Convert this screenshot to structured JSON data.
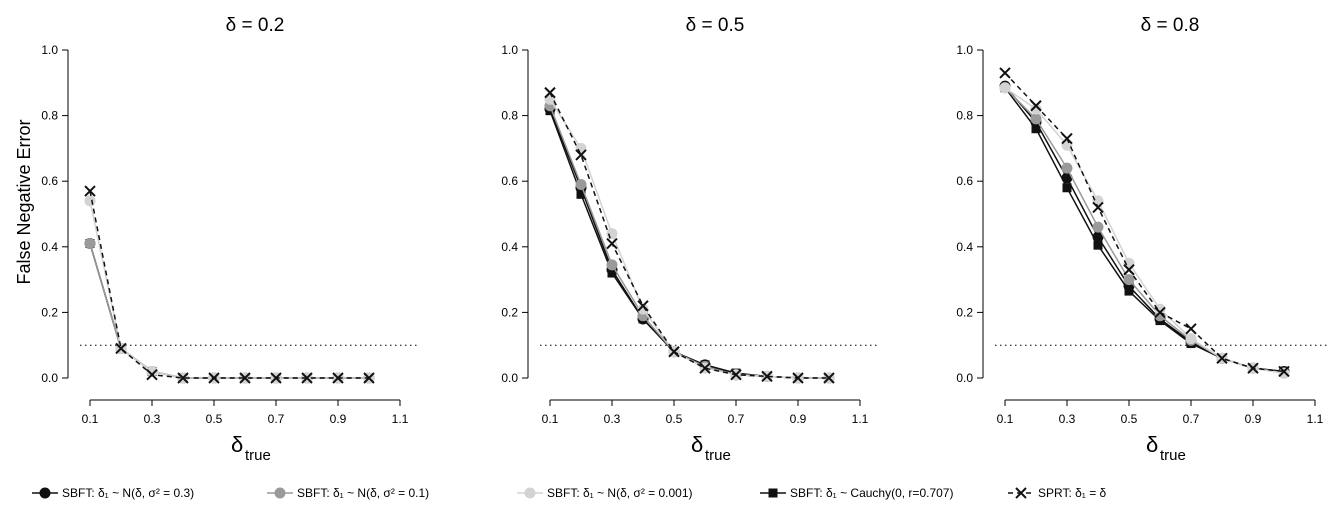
{
  "figure": {
    "ylabel": "False Negative Error",
    "xlabel_main": "δ",
    "xlabel_sub": "true"
  },
  "chart_data": [
    {
      "type": "line",
      "title": "δ = 0.2",
      "xlim": [
        0.1,
        1.1
      ],
      "ylim": [
        0,
        1
      ],
      "xticks": [
        "0.1",
        "0.3",
        "0.5",
        "0.7",
        "0.9",
        "1.1"
      ],
      "yticks": [
        "0.0",
        "0.2",
        "0.4",
        "0.6",
        "0.8",
        "1.0"
      ],
      "reference_line": 0.1,
      "x": [
        0.1,
        0.2,
        0.3,
        0.4,
        0.5,
        0.6,
        0.7,
        0.8,
        0.9,
        1.0
      ],
      "series": [
        {
          "values": [
            0.41,
            0.09,
            0.02,
            0.0,
            0.0,
            0.0,
            0.0,
            0.0,
            0.0,
            0.0
          ]
        },
        {
          "values": [
            0.41,
            0.09,
            0.02,
            0.0,
            0.0,
            0.0,
            0.0,
            0.0,
            0.0,
            0.0
          ]
        },
        {
          "values": [
            0.54,
            0.09,
            0.02,
            0.0,
            0.0,
            0.0,
            0.0,
            0.0,
            0.0,
            0.0
          ]
        },
        {
          "values": [
            0.41,
            0.09,
            0.02,
            0.0,
            0.0,
            0.0,
            0.0,
            0.0,
            0.0,
            0.0
          ]
        },
        {
          "values": [
            0.57,
            0.09,
            0.01,
            0.0,
            0.0,
            0.0,
            0.0,
            0.0,
            0.0,
            0.0
          ]
        }
      ]
    },
    {
      "type": "line",
      "title": "δ = 0.5",
      "xlim": [
        0.1,
        1.1
      ],
      "ylim": [
        0,
        1
      ],
      "xticks": [
        "0.1",
        "0.3",
        "0.5",
        "0.7",
        "0.9",
        "1.1"
      ],
      "yticks": [
        "0.0",
        "0.2",
        "0.4",
        "0.6",
        "0.8",
        "1.0"
      ],
      "reference_line": 0.1,
      "x": [
        0.1,
        0.2,
        0.3,
        0.4,
        0.5,
        0.6,
        0.7,
        0.8,
        0.9,
        1.0
      ],
      "series": [
        {
          "values": [
            0.82,
            0.58,
            0.33,
            0.18,
            0.08,
            0.04,
            0.01,
            0.005,
            0.0,
            0.0
          ]
        },
        {
          "values": [
            0.83,
            0.59,
            0.345,
            0.19,
            0.08,
            0.035,
            0.01,
            0.005,
            0.0,
            0.0
          ]
        },
        {
          "values": [
            0.85,
            0.7,
            0.44,
            0.21,
            0.08,
            0.03,
            0.01,
            0.005,
            0.0,
            0.0
          ]
        },
        {
          "values": [
            0.815,
            0.56,
            0.32,
            0.18,
            0.08,
            0.04,
            0.015,
            0.005,
            0.0,
            0.0
          ]
        },
        {
          "values": [
            0.87,
            0.68,
            0.41,
            0.22,
            0.08,
            0.03,
            0.01,
            0.005,
            0.0,
            0.0
          ]
        }
      ]
    },
    {
      "type": "line",
      "title": "δ = 0.8",
      "xlim": [
        0.1,
        1.1
      ],
      "ylim": [
        0,
        1
      ],
      "xticks": [
        "0.1",
        "0.3",
        "0.5",
        "0.7",
        "0.9",
        "1.1"
      ],
      "yticks": [
        "0.0",
        "0.2",
        "0.4",
        "0.6",
        "0.8",
        "1.0"
      ],
      "reference_line": 0.1,
      "x": [
        0.1,
        0.2,
        0.3,
        0.4,
        0.5,
        0.6,
        0.7,
        0.8,
        0.9,
        1.0
      ],
      "series": [
        {
          "values": [
            0.89,
            0.78,
            0.61,
            0.43,
            0.28,
            0.18,
            0.11,
            0.06,
            0.03,
            0.02
          ]
        },
        {
          "values": [
            0.885,
            0.79,
            0.64,
            0.46,
            0.3,
            0.19,
            0.115,
            0.06,
            0.03,
            0.015
          ]
        },
        {
          "values": [
            0.885,
            0.82,
            0.71,
            0.54,
            0.35,
            0.21,
            0.12,
            0.06,
            0.03,
            0.015
          ]
        },
        {
          "values": [
            0.885,
            0.76,
            0.58,
            0.405,
            0.265,
            0.175,
            0.105,
            0.06,
            0.03,
            0.02
          ]
        },
        {
          "values": [
            0.93,
            0.83,
            0.73,
            0.52,
            0.33,
            0.2,
            0.15,
            0.06,
            0.03,
            0.02
          ]
        }
      ]
    }
  ],
  "legend": [
    {
      "label": "SBFT: δ₁ ~ N(δ, σ² = 0.3)",
      "color": "#111111",
      "marker": "circle",
      "dash": false
    },
    {
      "label": "SBFT: δ₁ ~ N(δ, σ² = 0.1)",
      "color": "#9a9a9a",
      "marker": "circle",
      "dash": false
    },
    {
      "label": "SBFT: δ₁ ~ N(δ, σ² = 0.001)",
      "color": "#d3d3d3",
      "marker": "circle",
      "dash": false
    },
    {
      "label": "SBFT: δ₁ ~ Cauchy(0, r=0.707)",
      "color": "#111111",
      "marker": "square",
      "dash": false
    },
    {
      "label": "SPRT: δ₁ = δ",
      "color": "#111111",
      "marker": "cross",
      "dash": true
    }
  ]
}
